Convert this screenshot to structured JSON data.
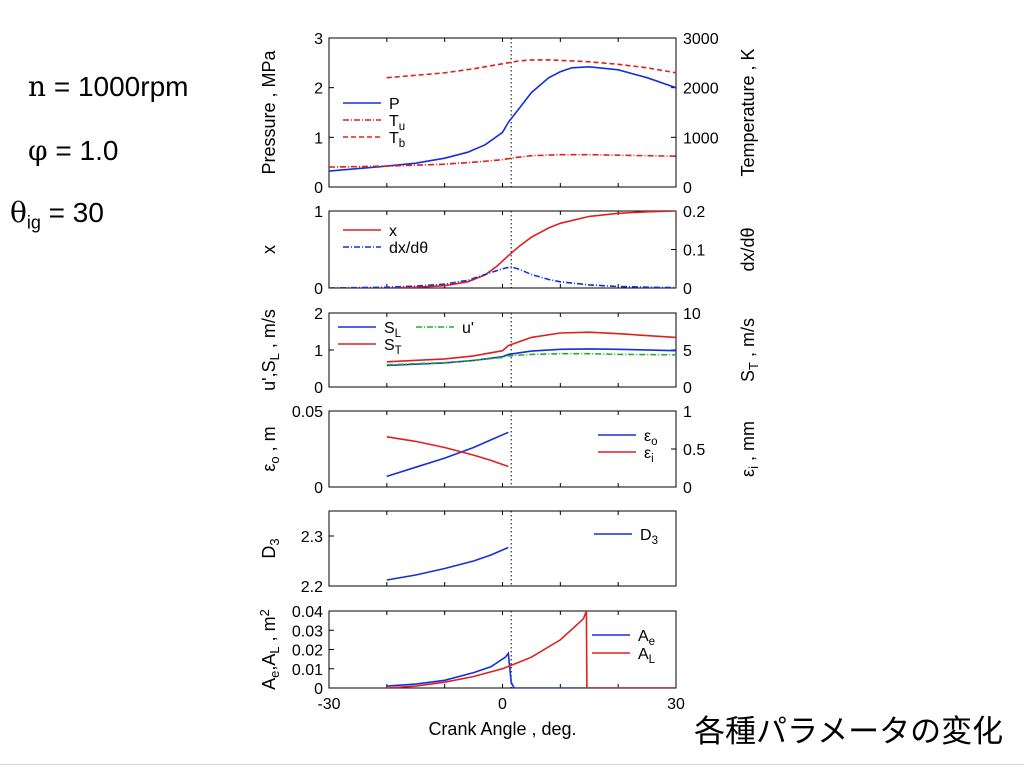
{
  "slide_title": "各種パラメータの変化",
  "parameters": [
    {
      "symbol": "n",
      "subscript": "",
      "value": " = 1000rpm"
    },
    {
      "symbol": "φ",
      "subscript": "",
      "value": " = 1.0"
    },
    {
      "symbol": "θ",
      "subscript": "ig",
      "value": " = 30"
    }
  ],
  "chart_data": [
    {
      "type": "line",
      "ylabel": "Pressure , MPa",
      "ylim": [
        0,
        3
      ],
      "yticks": [
        "0",
        "1",
        "2",
        "3"
      ],
      "ylabel_right": "Temperature , K",
      "ylim_right": [
        0,
        3000
      ],
      "yticks_right": [
        "0",
        "1000",
        "2000",
        "3000"
      ],
      "legend_position": "left",
      "series": [
        {
          "name": "P",
          "axis": "left",
          "color": "#1530d8",
          "dash": "solid",
          "x": [
            -30,
            -25,
            -20,
            -15,
            -10,
            -6,
            -3,
            0,
            1,
            3,
            5,
            8,
            10,
            12,
            15,
            20,
            25,
            30
          ],
          "y": [
            0.32,
            0.37,
            0.42,
            0.48,
            0.58,
            0.7,
            0.85,
            1.1,
            1.3,
            1.6,
            1.9,
            2.2,
            2.32,
            2.4,
            2.42,
            2.36,
            2.2,
            2.0
          ]
        },
        {
          "name": "Tu",
          "axis": "right",
          "color": "#e02020",
          "dash": "dashdot",
          "x": [
            -30,
            -20,
            -10,
            -5,
            0,
            2,
            5,
            10,
            15,
            20,
            30
          ],
          "y": [
            400,
            420,
            460,
            500,
            550,
            590,
            630,
            650,
            650,
            640,
            620
          ]
        },
        {
          "name": "Tb",
          "axis": "right",
          "color": "#e02020",
          "dash": "dashed",
          "x": [
            -20,
            -15,
            -10,
            -5,
            0,
            3,
            5,
            8,
            10,
            15,
            20,
            25,
            30
          ],
          "y": [
            2200,
            2250,
            2300,
            2380,
            2480,
            2540,
            2560,
            2560,
            2550,
            2520,
            2470,
            2400,
            2300
          ]
        }
      ]
    },
    {
      "type": "line",
      "ylabel": "x",
      "ylim": [
        0,
        1
      ],
      "yticks": [
        "0",
        "1"
      ],
      "ylabel_right": "dx/dθ",
      "ylim_right": [
        0,
        0.2
      ],
      "yticks_right": [
        "0",
        "0.1",
        "0.2"
      ],
      "legend_position": "left",
      "series": [
        {
          "name": "x",
          "axis": "left",
          "color": "#e02020",
          "dash": "solid",
          "x": [
            -30,
            -20,
            -15,
            -10,
            -6,
            -3,
            -1,
            1,
            3,
            5,
            8,
            10,
            15,
            20,
            25,
            30
          ],
          "y": [
            0,
            0,
            0.01,
            0.03,
            0.08,
            0.17,
            0.28,
            0.42,
            0.55,
            0.66,
            0.78,
            0.84,
            0.93,
            0.97,
            0.99,
            1.0
          ]
        },
        {
          "name": "dx/dθ",
          "axis": "right",
          "color": "#1530d8",
          "dash": "dashdot",
          "x": [
            -30,
            -20,
            -15,
            -10,
            -6,
            -3,
            0,
            1.5,
            3,
            5,
            8,
            10,
            15,
            20,
            25,
            30
          ],
          "y": [
            0,
            0.002,
            0.005,
            0.01,
            0.02,
            0.035,
            0.05,
            0.055,
            0.048,
            0.035,
            0.022,
            0.016,
            0.008,
            0.004,
            0.002,
            0.001
          ]
        }
      ]
    },
    {
      "type": "line",
      "ylabel": "u',SL , m/s",
      "ylim": [
        0,
        2
      ],
      "yticks": [
        "0",
        "1",
        "2"
      ],
      "ylabel_right": "ST , m/s",
      "ylim_right": [
        0,
        10
      ],
      "yticks_right": [
        "0",
        "5",
        "10"
      ],
      "legend_position": "top-left",
      "series": [
        {
          "name": "SL",
          "axis": "left",
          "color": "#1530d8",
          "dash": "solid",
          "x": [
            -20,
            -10,
            -5,
            0,
            1,
            5,
            10,
            15,
            20,
            30
          ],
          "y": [
            0.58,
            0.65,
            0.72,
            0.82,
            0.88,
            0.97,
            1.02,
            1.03,
            1.02,
            0.98
          ]
        },
        {
          "name": "ST",
          "axis": "right",
          "color": "#e02020",
          "dash": "solid",
          "x": [
            -20,
            -10,
            -5,
            0,
            1,
            5,
            10,
            15,
            20,
            30
          ],
          "y": [
            3.4,
            3.8,
            4.2,
            4.9,
            5.6,
            6.7,
            7.3,
            7.4,
            7.2,
            6.7
          ]
        },
        {
          "name": "u'",
          "axis": "left",
          "color": "#21b021",
          "dash": "dashdot",
          "x": [
            -20,
            -10,
            -5,
            0,
            1,
            5,
            10,
            15,
            20,
            30
          ],
          "y": [
            0.6,
            0.66,
            0.72,
            0.8,
            0.84,
            0.88,
            0.9,
            0.9,
            0.88,
            0.87
          ]
        }
      ]
    },
    {
      "type": "line",
      "ylabel": "εo , m",
      "ylim": [
        0,
        0.05
      ],
      "yticks": [
        "0",
        "0.05"
      ],
      "ylabel_right": "εi , mm",
      "ylim_right": [
        0,
        1
      ],
      "yticks_right": [
        "0",
        "0.5",
        "1"
      ],
      "legend_position": "top-right",
      "series": [
        {
          "name": "εo",
          "axis": "left",
          "color": "#1530d8",
          "dash": "solid",
          "x": [
            -20,
            -15,
            -10,
            -5,
            -2,
            1
          ],
          "y": [
            0.007,
            0.013,
            0.019,
            0.026,
            0.031,
            0.036
          ]
        },
        {
          "name": "εi",
          "axis": "right",
          "color": "#e02020",
          "dash": "solid",
          "x": [
            -20,
            -15,
            -10,
            -5,
            -2,
            1
          ],
          "y": [
            0.66,
            0.6,
            0.52,
            0.42,
            0.35,
            0.27
          ]
        }
      ]
    },
    {
      "type": "line",
      "ylabel": "D3",
      "ylim": [
        2.2,
        2.35
      ],
      "yticks": [
        "2.2",
        "2.3"
      ],
      "legend_position": "top-right",
      "series": [
        {
          "name": "D3",
          "axis": "left",
          "color": "#1530d8",
          "dash": "solid",
          "x": [
            -20,
            -15,
            -10,
            -5,
            -2,
            1
          ],
          "y": [
            2.212,
            2.222,
            2.235,
            2.25,
            2.262,
            2.277
          ]
        }
      ]
    },
    {
      "type": "line",
      "ylabel": "Ae,AL , m2",
      "ylim": [
        0,
        0.04
      ],
      "yticks": [
        "0",
        "0.01",
        "0.02",
        "0.03",
        "0.04"
      ],
      "xlabel": "Crank Angle , deg.",
      "xlim": [
        -30,
        30
      ],
      "xticks": [
        "-30",
        "0",
        "30"
      ],
      "legend_position": "top-right",
      "series": [
        {
          "name": "Ae",
          "axis": "left",
          "color": "#1530d8",
          "dash": "solid",
          "x": [
            -20,
            -15,
            -10,
            -5,
            -2,
            0.5,
            1,
            1.5,
            2,
            5,
            10,
            20,
            30
          ],
          "y": [
            0.001,
            0.002,
            0.004,
            0.008,
            0.011,
            0.016,
            0.018,
            0.003,
            0,
            0,
            0,
            0,
            0
          ]
        },
        {
          "name": "AL",
          "axis": "left",
          "color": "#e02020",
          "dash": "solid",
          "x": [
            -20,
            -15,
            -10,
            -5,
            0,
            5,
            10,
            14,
            14.5,
            14.6,
            20,
            30
          ],
          "y": [
            0,
            0.001,
            0.003,
            0.006,
            0.01,
            0.016,
            0.025,
            0.036,
            0.04,
            0,
            0,
            0
          ]
        }
      ]
    }
  ]
}
